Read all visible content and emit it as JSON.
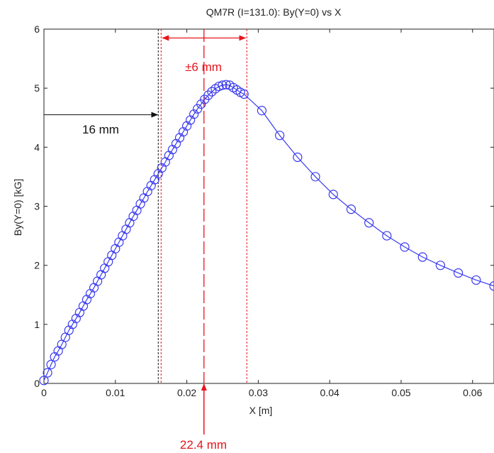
{
  "colors": {
    "series": "#3a3af0",
    "annotation": "#e8141c",
    "reference": "#111111",
    "axis": "#222222"
  },
  "chart_data": {
    "type": "line",
    "title": "QM7R (I=131.0): By(Y=0) vs X",
    "xlabel": "X [m]",
    "ylabel": "By(Y=0) [kG]",
    "xlim": [
      0,
      0.063
    ],
    "ylim": [
      0,
      6
    ],
    "xticks": [
      0,
      0.01,
      0.02,
      0.03,
      0.04,
      0.05,
      0.06
    ],
    "xtick_labels": [
      "0",
      "0.01",
      "0.02",
      "0.03",
      "0.04",
      "0.05",
      "0.06"
    ],
    "yticks": [
      0,
      1,
      2,
      3,
      4,
      5,
      6
    ],
    "ytick_labels": [
      "0",
      "1",
      "2",
      "3",
      "4",
      "5",
      "6"
    ],
    "grid": false,
    "series": [
      {
        "marker": "circle",
        "x": [
          0,
          0.0005,
          0.001,
          0.0015,
          0.002,
          0.0025,
          0.003,
          0.0035,
          0.004,
          0.0045,
          0.005,
          0.0055,
          0.006,
          0.0065,
          0.007,
          0.0075,
          0.008,
          0.0085,
          0.009,
          0.0095,
          0.01,
          0.0105,
          0.011,
          0.0115,
          0.012,
          0.0125,
          0.013,
          0.0135,
          0.014,
          0.0145,
          0.015,
          0.0155,
          0.016,
          0.0165,
          0.017,
          0.0175,
          0.018,
          0.0185,
          0.019,
          0.0195,
          0.02,
          0.0205,
          0.021,
          0.0215,
          0.022,
          0.0225,
          0.023,
          0.0235,
          0.024,
          0.0245,
          0.025,
          0.0255,
          0.026,
          0.0265,
          0.027,
          0.0275,
          0.028,
          0.0305,
          0.033,
          0.0355,
          0.038,
          0.0405,
          0.043,
          0.0455,
          0.048,
          0.0505,
          0.053,
          0.0555,
          0.058,
          0.0605,
          0.063
        ],
        "y": [
          0.05,
          0.18,
          0.32,
          0.45,
          0.55,
          0.66,
          0.78,
          0.9,
          1.0,
          1.1,
          1.2,
          1.31,
          1.42,
          1.52,
          1.62,
          1.73,
          1.84,
          1.95,
          2.06,
          2.17,
          2.28,
          2.39,
          2.5,
          2.61,
          2.72,
          2.83,
          2.93,
          3.04,
          3.14,
          3.25,
          3.35,
          3.45,
          3.55,
          3.65,
          3.75,
          3.86,
          3.96,
          4.06,
          4.16,
          4.26,
          4.36,
          4.46,
          4.56,
          4.65,
          4.73,
          4.81,
          4.88,
          4.94,
          4.99,
          5.03,
          5.05,
          5.06,
          5.05,
          5.01,
          4.97,
          4.93,
          4.9,
          4.62,
          4.2,
          3.83,
          3.5,
          3.2,
          2.95,
          2.72,
          2.5,
          2.31,
          2.14,
          2.0,
          1.87,
          1.75,
          1.65
        ]
      }
    ],
    "annotations": {
      "center_label": "22.4 mm",
      "center_x": 0.0224,
      "window_label": "±6 mm",
      "window_left_x": 0.0164,
      "window_right_x": 0.0284,
      "window_arrow_y": 5.85,
      "offset_label": "16 mm",
      "offset_x": 0.016,
      "offset_arrow_y": 4.55
    }
  }
}
